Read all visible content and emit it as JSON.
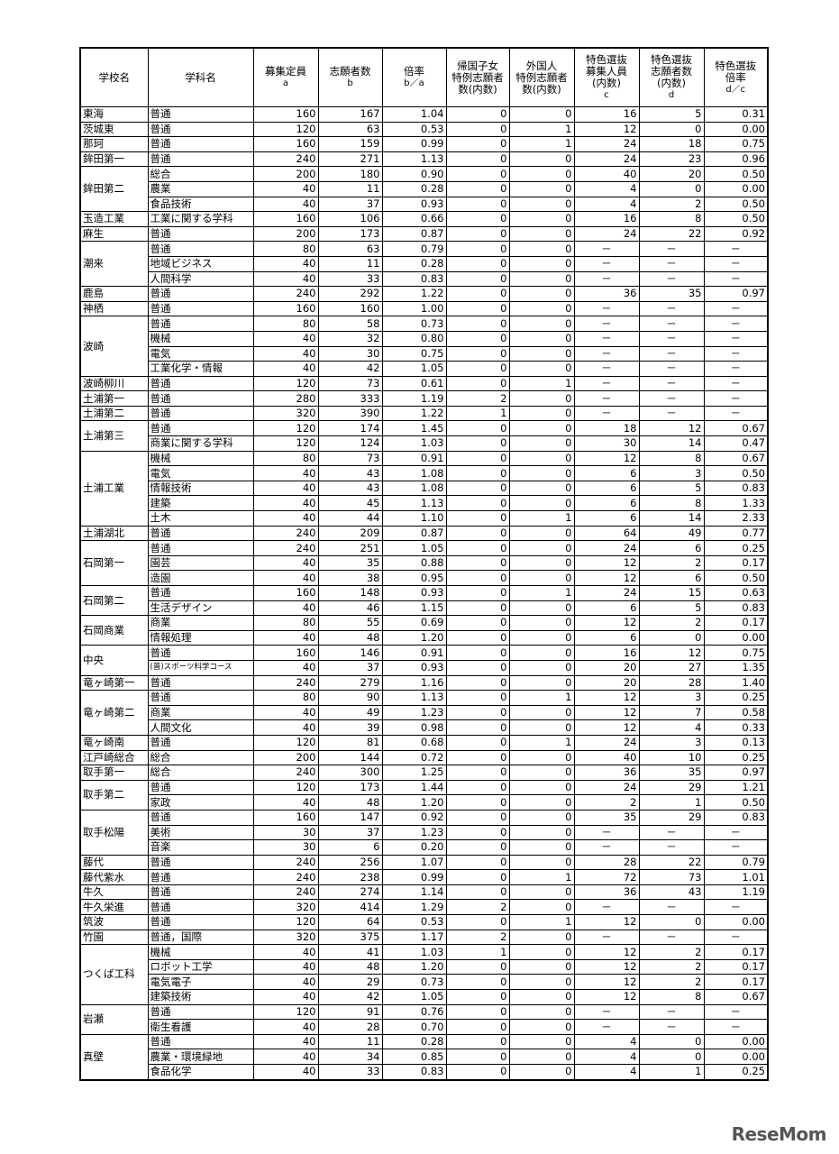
{
  "headers": [
    {
      "main": "学校名",
      "sub": ""
    },
    {
      "main": "学科名",
      "sub": ""
    },
    {
      "main": "募集定員",
      "sub": "a"
    },
    {
      "main": "志願者数",
      "sub": "b"
    },
    {
      "main": "倍率",
      "sub": "b／a"
    },
    {
      "main": "帰国子女 特例志願者 数(内数)",
      "sub": ""
    },
    {
      "main": "外国人 特例志願者 数(内数)",
      "sub": ""
    },
    {
      "main": "特色選抜 募集人員 (内数)",
      "sub": "c"
    },
    {
      "main": "特色選抜 志願者数 (内数)",
      "sub": "d"
    },
    {
      "main": "特色選抜 倍率",
      "sub": "d／c"
    }
  ],
  "schools": [
    {
      "name": "東海",
      "rows": [
        [
          "普通",
          "160",
          "167",
          "1.04",
          "0",
          "0",
          "16",
          "5",
          "0.31"
        ]
      ]
    },
    {
      "name": "茨城東",
      "rows": [
        [
          "普通",
          "120",
          "63",
          "0.53",
          "0",
          "1",
          "12",
          "0",
          "0.00"
        ]
      ]
    },
    {
      "name": "那珂",
      "rows": [
        [
          "普通",
          "160",
          "159",
          "0.99",
          "0",
          "1",
          "24",
          "18",
          "0.75"
        ]
      ]
    },
    {
      "name": "鉾田第一",
      "rows": [
        [
          "普通",
          "240",
          "271",
          "1.13",
          "0",
          "0",
          "24",
          "23",
          "0.96"
        ]
      ]
    },
    {
      "name": "鉾田第二",
      "rows": [
        [
          "総合",
          "200",
          "180",
          "0.90",
          "0",
          "0",
          "40",
          "20",
          "0.50"
        ],
        [
          "農業",
          "40",
          "11",
          "0.28",
          "0",
          "0",
          "4",
          "0",
          "0.00"
        ],
        [
          "食品技術",
          "40",
          "37",
          "0.93",
          "0",
          "0",
          "4",
          "2",
          "0.50"
        ]
      ]
    },
    {
      "name": "玉造工業",
      "rows": [
        [
          "工業に関する学科",
          "160",
          "106",
          "0.66",
          "0",
          "0",
          "16",
          "8",
          "0.50"
        ]
      ]
    },
    {
      "name": "麻生",
      "rows": [
        [
          "普通",
          "200",
          "173",
          "0.87",
          "0",
          "0",
          "24",
          "22",
          "0.92"
        ]
      ]
    },
    {
      "name": "潮来",
      "rows": [
        [
          "普通",
          "80",
          "63",
          "0.79",
          "0",
          "0",
          "－",
          "－",
          "－"
        ],
        [
          "地域ビジネス",
          "40",
          "11",
          "0.28",
          "0",
          "0",
          "－",
          "－",
          "－"
        ],
        [
          "人間科学",
          "40",
          "33",
          "0.83",
          "0",
          "0",
          "－",
          "－",
          "－"
        ]
      ]
    },
    {
      "name": "鹿島",
      "rows": [
        [
          "普通",
          "240",
          "292",
          "1.22",
          "0",
          "0",
          "36",
          "35",
          "0.97"
        ]
      ]
    },
    {
      "name": "神栖",
      "rows": [
        [
          "普通",
          "160",
          "160",
          "1.00",
          "0",
          "0",
          "－",
          "－",
          "－"
        ]
      ]
    },
    {
      "name": "波崎",
      "rows": [
        [
          "普通",
          "80",
          "58",
          "0.73",
          "0",
          "0",
          "－",
          "－",
          "－"
        ],
        [
          "機械",
          "40",
          "32",
          "0.80",
          "0",
          "0",
          "－",
          "－",
          "－"
        ],
        [
          "電気",
          "40",
          "30",
          "0.75",
          "0",
          "0",
          "－",
          "－",
          "－"
        ],
        [
          "工業化学・情報",
          "40",
          "42",
          "1.05",
          "0",
          "0",
          "－",
          "－",
          "－"
        ]
      ]
    },
    {
      "name": "波崎柳川",
      "rows": [
        [
          "普通",
          "120",
          "73",
          "0.61",
          "0",
          "1",
          "－",
          "－",
          "－"
        ]
      ]
    },
    {
      "name": "土浦第一",
      "rows": [
        [
          "普通",
          "280",
          "333",
          "1.19",
          "2",
          "0",
          "－",
          "－",
          "－"
        ]
      ]
    },
    {
      "name": "土浦第二",
      "rows": [
        [
          "普通",
          "320",
          "390",
          "1.22",
          "1",
          "0",
          "－",
          "－",
          "－"
        ]
      ]
    },
    {
      "name": "土浦第三",
      "rows": [
        [
          "普通",
          "120",
          "174",
          "1.45",
          "0",
          "0",
          "18",
          "12",
          "0.67"
        ],
        [
          "商業に関する学科",
          "120",
          "124",
          "1.03",
          "0",
          "0",
          "30",
          "14",
          "0.47"
        ]
      ]
    },
    {
      "name": "土浦工業",
      "rows": [
        [
          "機械",
          "80",
          "73",
          "0.91",
          "0",
          "0",
          "12",
          "8",
          "0.67"
        ],
        [
          "電気",
          "40",
          "43",
          "1.08",
          "0",
          "0",
          "6",
          "3",
          "0.50"
        ],
        [
          "情報技術",
          "40",
          "43",
          "1.08",
          "0",
          "0",
          "6",
          "5",
          "0.83"
        ],
        [
          "建築",
          "40",
          "45",
          "1.13",
          "0",
          "0",
          "6",
          "8",
          "1.33"
        ],
        [
          "土木",
          "40",
          "44",
          "1.10",
          "0",
          "1",
          "6",
          "14",
          "2.33"
        ]
      ]
    },
    {
      "name": "土浦湖北",
      "rows": [
        [
          "普通",
          "240",
          "209",
          "0.87",
          "0",
          "0",
          "64",
          "49",
          "0.77"
        ]
      ]
    },
    {
      "name": "石岡第一",
      "rows": [
        [
          "普通",
          "240",
          "251",
          "1.05",
          "0",
          "0",
          "24",
          "6",
          "0.25"
        ],
        [
          "園芸",
          "40",
          "35",
          "0.88",
          "0",
          "0",
          "12",
          "2",
          "0.17"
        ],
        [
          "造園",
          "40",
          "38",
          "0.95",
          "0",
          "0",
          "12",
          "6",
          "0.50"
        ]
      ]
    },
    {
      "name": "石岡第二",
      "rows": [
        [
          "普通",
          "160",
          "148",
          "0.93",
          "0",
          "1",
          "24",
          "15",
          "0.63"
        ],
        [
          "生活デザイン",
          "40",
          "46",
          "1.15",
          "0",
          "0",
          "6",
          "5",
          "0.83"
        ]
      ]
    },
    {
      "name": "石岡商業",
      "rows": [
        [
          "商業",
          "80",
          "55",
          "0.69",
          "0",
          "0",
          "12",
          "2",
          "0.17"
        ],
        [
          "情報処理",
          "40",
          "48",
          "1.20",
          "0",
          "0",
          "6",
          "0",
          "0.00"
        ]
      ]
    },
    {
      "name": "中央",
      "rows": [
        [
          "普通",
          "160",
          "146",
          "0.91",
          "0",
          "0",
          "16",
          "12",
          "0.75"
        ],
        [
          "(普)スポーツ科学コース",
          "40",
          "37",
          "0.93",
          "0",
          "0",
          "20",
          "27",
          "1.35"
        ]
      ]
    },
    {
      "name": "竜ヶ崎第一",
      "rows": [
        [
          "普通",
          "240",
          "279",
          "1.16",
          "0",
          "0",
          "20",
          "28",
          "1.40"
        ]
      ]
    },
    {
      "name": "竜ヶ崎第二",
      "rows": [
        [
          "普通",
          "80",
          "90",
          "1.13",
          "0",
          "1",
          "12",
          "3",
          "0.25"
        ],
        [
          "商業",
          "40",
          "49",
          "1.23",
          "0",
          "0",
          "12",
          "7",
          "0.58"
        ],
        [
          "人間文化",
          "40",
          "39",
          "0.98",
          "0",
          "0",
          "12",
          "4",
          "0.33"
        ]
      ]
    },
    {
      "name": "竜ヶ崎南",
      "rows": [
        [
          "普通",
          "120",
          "81",
          "0.68",
          "0",
          "1",
          "24",
          "3",
          "0.13"
        ]
      ]
    },
    {
      "name": "江戸崎総合",
      "rows": [
        [
          "総合",
          "200",
          "144",
          "0.72",
          "0",
          "0",
          "40",
          "10",
          "0.25"
        ]
      ]
    },
    {
      "name": "取手第一",
      "rows": [
        [
          "総合",
          "240",
          "300",
          "1.25",
          "0",
          "0",
          "36",
          "35",
          "0.97"
        ]
      ]
    },
    {
      "name": "取手第二",
      "rows": [
        [
          "普通",
          "120",
          "173",
          "1.44",
          "0",
          "0",
          "24",
          "29",
          "1.21"
        ],
        [
          "家政",
          "40",
          "48",
          "1.20",
          "0",
          "0",
          "2",
          "1",
          "0.50"
        ]
      ]
    },
    {
      "name": "取手松陽",
      "rows": [
        [
          "普通",
          "160",
          "147",
          "0.92",
          "0",
          "0",
          "35",
          "29",
          "0.83"
        ],
        [
          "美術",
          "30",
          "37",
          "1.23",
          "0",
          "0",
          "－",
          "－",
          "－"
        ],
        [
          "音楽",
          "30",
          "6",
          "0.20",
          "0",
          "0",
          "－",
          "－",
          "－"
        ]
      ]
    },
    {
      "name": "藤代",
      "rows": [
        [
          "普通",
          "240",
          "256",
          "1.07",
          "0",
          "0",
          "28",
          "22",
          "0.79"
        ]
      ]
    },
    {
      "name": "藤代紫水",
      "rows": [
        [
          "普通",
          "240",
          "238",
          "0.99",
          "0",
          "1",
          "72",
          "73",
          "1.01"
        ]
      ]
    },
    {
      "name": "牛久",
      "rows": [
        [
          "普通",
          "240",
          "274",
          "1.14",
          "0",
          "0",
          "36",
          "43",
          "1.19"
        ]
      ]
    },
    {
      "name": "牛久栄進",
      "rows": [
        [
          "普通",
          "320",
          "414",
          "1.29",
          "2",
          "0",
          "－",
          "－",
          "－"
        ]
      ]
    },
    {
      "name": "筑波",
      "rows": [
        [
          "普通",
          "120",
          "64",
          "0.53",
          "0",
          "1",
          "12",
          "0",
          "0.00"
        ]
      ]
    },
    {
      "name": "竹園",
      "rows": [
        [
          "普通，国際",
          "320",
          "375",
          "1.17",
          "2",
          "0",
          "－",
          "－",
          "－"
        ]
      ]
    },
    {
      "name": "つくば工科",
      "rows": [
        [
          "機械",
          "40",
          "41",
          "1.03",
          "1",
          "0",
          "12",
          "2",
          "0.17"
        ],
        [
          "ロボット工学",
          "40",
          "48",
          "1.20",
          "0",
          "0",
          "12",
          "2",
          "0.17"
        ],
        [
          "電気電子",
          "40",
          "29",
          "0.73",
          "0",
          "0",
          "12",
          "2",
          "0.17"
        ],
        [
          "建築技術",
          "40",
          "42",
          "1.05",
          "0",
          "0",
          "12",
          "8",
          "0.67"
        ]
      ]
    },
    {
      "name": "岩瀬",
      "rows": [
        [
          "普通",
          "120",
          "91",
          "0.76",
          "0",
          "0",
          "－",
          "－",
          "－"
        ],
        [
          "衛生看護",
          "40",
          "28",
          "0.70",
          "0",
          "0",
          "－",
          "－",
          "－"
        ]
      ]
    },
    {
      "name": "真壁",
      "rows": [
        [
          "普通",
          "40",
          "11",
          "0.28",
          "0",
          "0",
          "4",
          "0",
          "0.00"
        ],
        [
          "農業・環境緑地",
          "40",
          "34",
          "0.85",
          "0",
          "0",
          "4",
          "0",
          "0.00"
        ],
        [
          "食品化学",
          "40",
          "33",
          "0.83",
          "0",
          "0",
          "4",
          "1",
          "0.25"
        ]
      ]
    }
  ],
  "logo": {
    "text": "ReseMom"
  }
}
